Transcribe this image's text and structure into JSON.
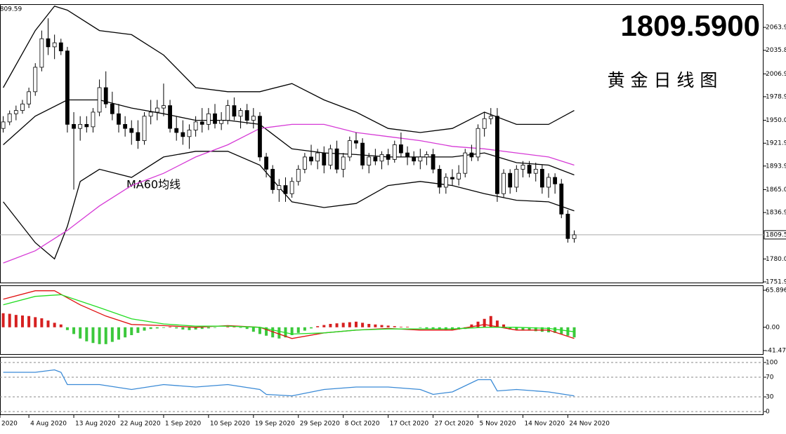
{
  "chart_data": [
    {
      "type": "candlestick",
      "title": "1809.5900",
      "subtitle": "黄 金 日 线 图",
      "annotation": "MA60均线",
      "price_line": 1809.59,
      "price_tag": "1809.5",
      "up_color": "#ffffff",
      "down_color": "#000000",
      "title_color": "#7cfc00",
      "annotation_color": "#d63ad6",
      "xlim": [
        -0.5,
        118.5
      ],
      "ylim": [
        1750.2,
        2092.3
      ],
      "yticks": [
        2063.9,
        2035.8,
        2006.9,
        1978.9,
        {
          "value": 1950,
          "label": "1950.0"
        },
        1921.9,
        1893.9,
        {
          "value": 1865,
          "label": "1865.0"
        },
        1836.9,
        {
          "value": 1780,
          "label": "1780.0"
        },
        1751.9
      ],
      "open": [
        1940,
        1948,
        1958,
        1962,
        1970,
        1985,
        2015,
        2050,
        2040,
        2045,
        2035,
        1945,
        1940,
        1945,
        1942,
        1960,
        1990,
        1970,
        1958,
        1945,
        1940,
        1935,
        1925,
        1955,
        1960,
        1965,
        1968,
        1940,
        1935,
        1930,
        1938,
        1948,
        1945,
        1958,
        1946,
        1950,
        1968,
        1955,
        1962,
        1950,
        1955,
        1905,
        1890,
        1865,
        1870,
        1860,
        1875,
        1890,
        1905,
        1900,
        1910,
        1895,
        1915,
        1890,
        1905,
        1925,
        1922,
        1895,
        1905,
        1900,
        1908,
        1902,
        1920,
        1910,
        1905,
        1900,
        1905,
        1908,
        1890,
        1868,
        1880,
        1878,
        1885,
        1910,
        1905,
        1940,
        1952,
        1955,
        1860,
        1885,
        1868,
        1890,
        1895,
        1885,
        1890,
        1868,
        1880,
        1872,
        1835,
        1805
      ],
      "high": [
        1955,
        1962,
        1968,
        1975,
        1990,
        2020,
        2060,
        2075,
        2055,
        2050,
        2040,
        1960,
        1955,
        1955,
        1965,
        2000,
        2010,
        1985,
        1970,
        1955,
        1950,
        1950,
        1960,
        1975,
        1975,
        1995,
        1975,
        1955,
        1950,
        1945,
        1955,
        1965,
        1965,
        1970,
        1960,
        1975,
        1978,
        1965,
        1970,
        1965,
        1960,
        1910,
        1895,
        1878,
        1880,
        1880,
        1895,
        1910,
        1920,
        1915,
        1918,
        1920,
        1925,
        1910,
        1930,
        1935,
        1928,
        1910,
        1915,
        1912,
        1915,
        1925,
        1935,
        1918,
        1912,
        1915,
        1912,
        1915,
        1895,
        1885,
        1890,
        1895,
        1915,
        1920,
        1945,
        1960,
        1965,
        1965,
        1890,
        1890,
        1895,
        1900,
        1900,
        1898,
        1895,
        1885,
        1885,
        1878,
        1840,
        1815
      ],
      "low": [
        1935,
        1944,
        1950,
        1958,
        1965,
        1980,
        2010,
        2030,
        2025,
        2030,
        1935,
        1865,
        1925,
        1935,
        1935,
        1955,
        1965,
        1950,
        1935,
        1930,
        1920,
        1915,
        1920,
        1945,
        1950,
        1955,
        1935,
        1925,
        1920,
        1915,
        1930,
        1935,
        1938,
        1940,
        1938,
        1945,
        1950,
        1940,
        1945,
        1940,
        1900,
        1880,
        1860,
        1850,
        1850,
        1855,
        1870,
        1885,
        1895,
        1890,
        1885,
        1890,
        1885,
        1880,
        1900,
        1915,
        1890,
        1885,
        1895,
        1890,
        1895,
        1898,
        1905,
        1895,
        1895,
        1890,
        1895,
        1885,
        1860,
        1860,
        1870,
        1870,
        1880,
        1900,
        1900,
        1930,
        1945,
        1850,
        1855,
        1860,
        1862,
        1880,
        1880,
        1875,
        1860,
        1855,
        1860,
        1830,
        1800,
        1800
      ],
      "close": [
        1948,
        1958,
        1962,
        1970,
        1985,
        2015,
        2050,
        2040,
        2045,
        2035,
        1945,
        1940,
        1945,
        1942,
        1960,
        1990,
        1970,
        1958,
        1945,
        1940,
        1935,
        1925,
        1955,
        1960,
        1965,
        1968,
        1940,
        1935,
        1930,
        1938,
        1948,
        1945,
        1958,
        1946,
        1950,
        1968,
        1955,
        1962,
        1950,
        1955,
        1905,
        1890,
        1865,
        1870,
        1860,
        1875,
        1890,
        1905,
        1900,
        1910,
        1895,
        1915,
        1890,
        1905,
        1925,
        1922,
        1895,
        1905,
        1900,
        1908,
        1902,
        1920,
        1910,
        1905,
        1900,
        1905,
        1908,
        1890,
        1868,
        1880,
        1878,
        1885,
        1910,
        1905,
        1940,
        1952,
        1955,
        1860,
        1885,
        1868,
        1890,
        1895,
        1885,
        1890,
        1868,
        1880,
        1872,
        1835,
        1805,
        1809.59
      ],
      "series": [
        {
          "color": "#000000",
          "x": [
            0,
            5,
            8,
            10,
            15,
            20,
            25,
            30,
            35,
            40,
            45,
            50,
            55,
            60,
            65,
            70,
            75,
            80,
            85,
            89
          ],
          "values": [
            1990,
            2060,
            2090,
            2085,
            2060,
            2055,
            2030,
            1990,
            1985,
            1985,
            1995,
            1975,
            1960,
            1940,
            1935,
            1940,
            1960,
            1945,
            1945,
            1962
          ]
        },
        {
          "color": "#000000",
          "x": [
            0,
            5,
            10,
            15,
            20,
            25,
            30,
            35,
            40,
            45,
            50,
            55,
            60,
            65,
            70,
            75,
            80,
            85,
            89
          ],
          "values": [
            1920,
            1955,
            1975,
            1975,
            1965,
            1958,
            1950,
            1950,
            1945,
            1915,
            1910,
            1908,
            1905,
            1905,
            1905,
            1910,
            1898,
            1895,
            1883
          ]
        },
        {
          "color": "#000000",
          "x": [
            0,
            5,
            8,
            10,
            12,
            15,
            20,
            25,
            30,
            35,
            40,
            45,
            50,
            55,
            60,
            65,
            70,
            75,
            80,
            85,
            89
          ],
          "values": [
            1850,
            1800,
            1780,
            1820,
            1875,
            1890,
            1880,
            1905,
            1912,
            1912,
            1895,
            1850,
            1843,
            1848,
            1870,
            1875,
            1870,
            1860,
            1852,
            1850,
            1839
          ]
        },
        {
          "color": "#d63ad6",
          "x": [
            0,
            5,
            10,
            15,
            20,
            25,
            30,
            35,
            40,
            45,
            50,
            55,
            60,
            65,
            70,
            75,
            80,
            85,
            89
          ],
          "values": [
            1775,
            1790,
            1815,
            1845,
            1870,
            1885,
            1905,
            1920,
            1940,
            1945,
            1945,
            1935,
            1930,
            1925,
            1918,
            1915,
            1910,
            1905,
            1895
          ]
        }
      ]
    },
    {
      "type": "macd",
      "xlim": [
        -0.5,
        118.5
      ],
      "ylim": [
        -48.96,
        73.4
      ],
      "yticks": [
        65.896,
        {
          "value": 0,
          "label": "0.00"
        },
        -41.472
      ],
      "up_color": "#d62020",
      "down_color": "#3cc83c",
      "values": [
        25,
        24,
        22,
        21,
        20,
        18,
        16,
        12,
        8,
        5,
        -5,
        -12,
        -20,
        -25,
        -28,
        -30,
        -30,
        -26,
        -22,
        -18,
        -14,
        -10,
        -6,
        -3,
        -2,
        -1,
        1,
        -2,
        -4,
        -5,
        -4,
        -3,
        -2,
        -1,
        0,
        1,
        1,
        -1,
        -3,
        -8,
        -12,
        -15,
        -18,
        -20,
        -18,
        -14,
        -10,
        -6,
        -2,
        2,
        4,
        6,
        7,
        8,
        9,
        10,
        8,
        6,
        5,
        4,
        3,
        2,
        1,
        1,
        0,
        -1,
        -2,
        -3,
        -4,
        -5,
        -5,
        -4,
        -3,
        5,
        10,
        15,
        20,
        12,
        5,
        -4,
        -5,
        -6,
        -6,
        -7,
        -8,
        -9,
        -10,
        -12,
        -15,
        -18
      ],
      "series": [
        {
          "color": "#e01010",
          "x": [
            0,
            5,
            8,
            12,
            16,
            20,
            25,
            30,
            35,
            40,
            45,
            50,
            55,
            60,
            65,
            70,
            75,
            80,
            85,
            89
          ],
          "values": [
            50,
            65,
            65,
            40,
            20,
            5,
            3,
            0,
            3,
            0,
            -20,
            -10,
            -5,
            -2,
            -5,
            -5,
            5,
            -5,
            -5,
            -20
          ]
        },
        {
          "color": "#22dd22",
          "x": [
            0,
            5,
            9,
            15,
            20,
            25,
            30,
            35,
            40,
            45,
            50,
            55,
            60,
            65,
            70,
            75,
            80,
            85,
            89
          ],
          "values": [
            40,
            55,
            58,
            35,
            15,
            6,
            2,
            2,
            0,
            -12,
            -10,
            -5,
            -3,
            -3,
            -3,
            0,
            0,
            -2,
            -8
          ]
        }
      ]
    },
    {
      "type": "line",
      "xlim": [
        -0.5,
        118.5
      ],
      "ylim": [
        -7.1,
        110
      ],
      "yticks": [
        100,
        70,
        30,
        0
      ],
      "grid": true,
      "xticks": [
        {
          "value": -0.5,
          "label": "2020"
        },
        {
          "value": 4,
          "label": "4 Aug 2020"
        },
        {
          "value": 11,
          "label": "13 Aug 2020"
        },
        {
          "value": 18,
          "label": "22 Aug 2020"
        },
        {
          "value": 25,
          "label": "1 Sep 2020"
        },
        {
          "value": 32,
          "label": "10 Sep 2020"
        },
        {
          "value": 39,
          "label": "19 Sep 2020"
        },
        {
          "value": 46,
          "label": "29 Sep 2020"
        },
        {
          "value": 53,
          "label": "8 Oct 2020"
        },
        {
          "value": 60,
          "label": "17 Oct 2020"
        },
        {
          "value": 67,
          "label": "27 Oct 2020"
        },
        {
          "value": 74,
          "label": "5 Nov 2020"
        },
        {
          "value": 81,
          "label": "14 Nov 2020"
        },
        {
          "value": 88,
          "label": "24 Nov 2020"
        }
      ],
      "series": [
        {
          "color": "#3a8ad6",
          "x": [
            0,
            5,
            8,
            9,
            10,
            15,
            20,
            25,
            30,
            35,
            40,
            41,
            45,
            50,
            55,
            60,
            65,
            67,
            70,
            74,
            76,
            77,
            80,
            85,
            89
          ],
          "values": [
            80,
            80,
            85,
            80,
            55,
            55,
            45,
            55,
            50,
            55,
            45,
            35,
            32,
            45,
            50,
            50,
            45,
            35,
            40,
            65,
            65,
            42,
            45,
            40,
            32
          ]
        }
      ]
    }
  ]
}
